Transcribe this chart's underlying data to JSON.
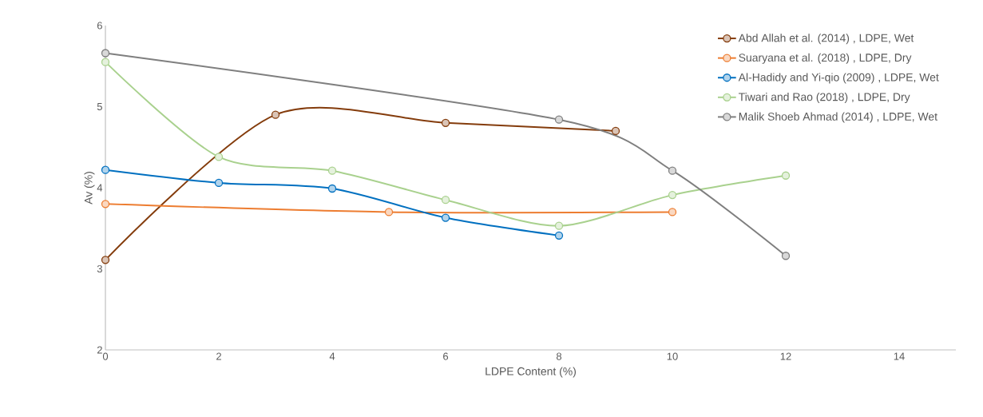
{
  "chart_data": {
    "type": "line",
    "xlabel": "LDPE Content (%)",
    "ylabel": "Av (%)",
    "xlim": [
      0,
      15
    ],
    "xticks": [
      0,
      2,
      4,
      6,
      8,
      10,
      12,
      14
    ],
    "ylim": [
      2,
      6
    ],
    "yticks": [
      2,
      3,
      4,
      5,
      6
    ],
    "grid": false,
    "legend": "top right",
    "marker": "circle",
    "line_style": "solid",
    "series": [
      {
        "name": "Abd Allah et al. (2014) , LDPE, Wet",
        "color": "#843c0c",
        "x": [
          0,
          3,
          6,
          9
        ],
        "values": [
          3.11,
          4.9,
          4.8,
          4.7
        ]
      },
      {
        "name": "Suaryana et al. (2018) , LDPE, Dry",
        "color": "#ed7d31",
        "x": [
          0,
          5,
          10
        ],
        "values": [
          3.8,
          3.7,
          3.7
        ]
      },
      {
        "name": "Al-Hadidy and Yi-qio (2009) , LDPE, Wet",
        "color": "#0070c0",
        "x": [
          0,
          2,
          4,
          6,
          8
        ],
        "values": [
          4.22,
          4.06,
          3.99,
          3.63,
          3.41
        ]
      },
      {
        "name": "Tiwari and Rao (2018) , LDPE, Dry",
        "color": "#a9d18e",
        "x": [
          0,
          2,
          4,
          6,
          8,
          10,
          12
        ],
        "values": [
          5.55,
          4.38,
          4.21,
          3.85,
          3.53,
          3.91,
          4.15
        ]
      },
      {
        "name": "Malik Shoeb Ahmad (2014) , LDPE, Wet",
        "color": "#7f7f7f",
        "x": [
          0,
          8,
          10,
          12
        ],
        "values": [
          5.66,
          4.84,
          4.21,
          3.16
        ]
      }
    ]
  }
}
